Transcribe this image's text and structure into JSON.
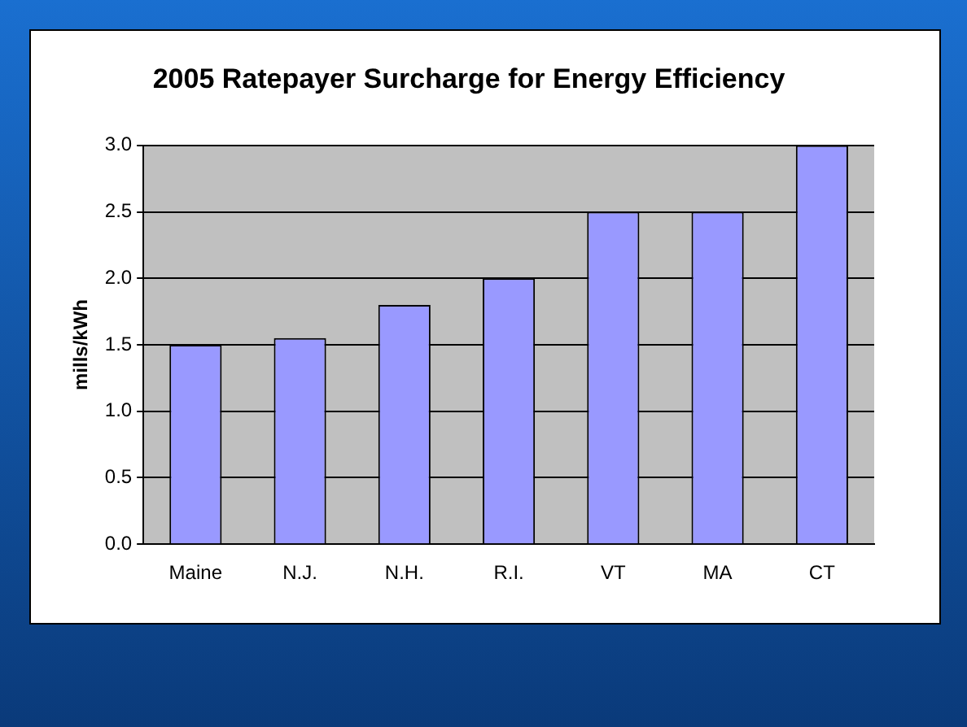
{
  "chart_data": {
    "type": "bar",
    "title": "2005 Ratepayer Surcharge for Energy Efficiency",
    "ylabel": "mills/kWh",
    "categories": [
      "Maine",
      "N.J.",
      "N.H.",
      "R.I.",
      "VT",
      "MA",
      "CT"
    ],
    "values": [
      1.5,
      1.55,
      1.8,
      2.0,
      2.5,
      2.5,
      3.0
    ],
    "color": "#9999ff",
    "ylim": [
      0,
      3.0
    ],
    "yticks": [
      {
        "value": 0,
        "label": "0.0"
      },
      {
        "value": 0.5,
        "label": "0.5"
      },
      {
        "value": 1,
        "label": "1.0"
      },
      {
        "value": 1.5,
        "label": "1.5"
      },
      {
        "value": 2,
        "label": "2.0"
      },
      {
        "value": 2.5,
        "label": "2.5"
      },
      {
        "value": 3,
        "label": "3.0"
      }
    ],
    "grid": "y",
    "legend": false
  }
}
